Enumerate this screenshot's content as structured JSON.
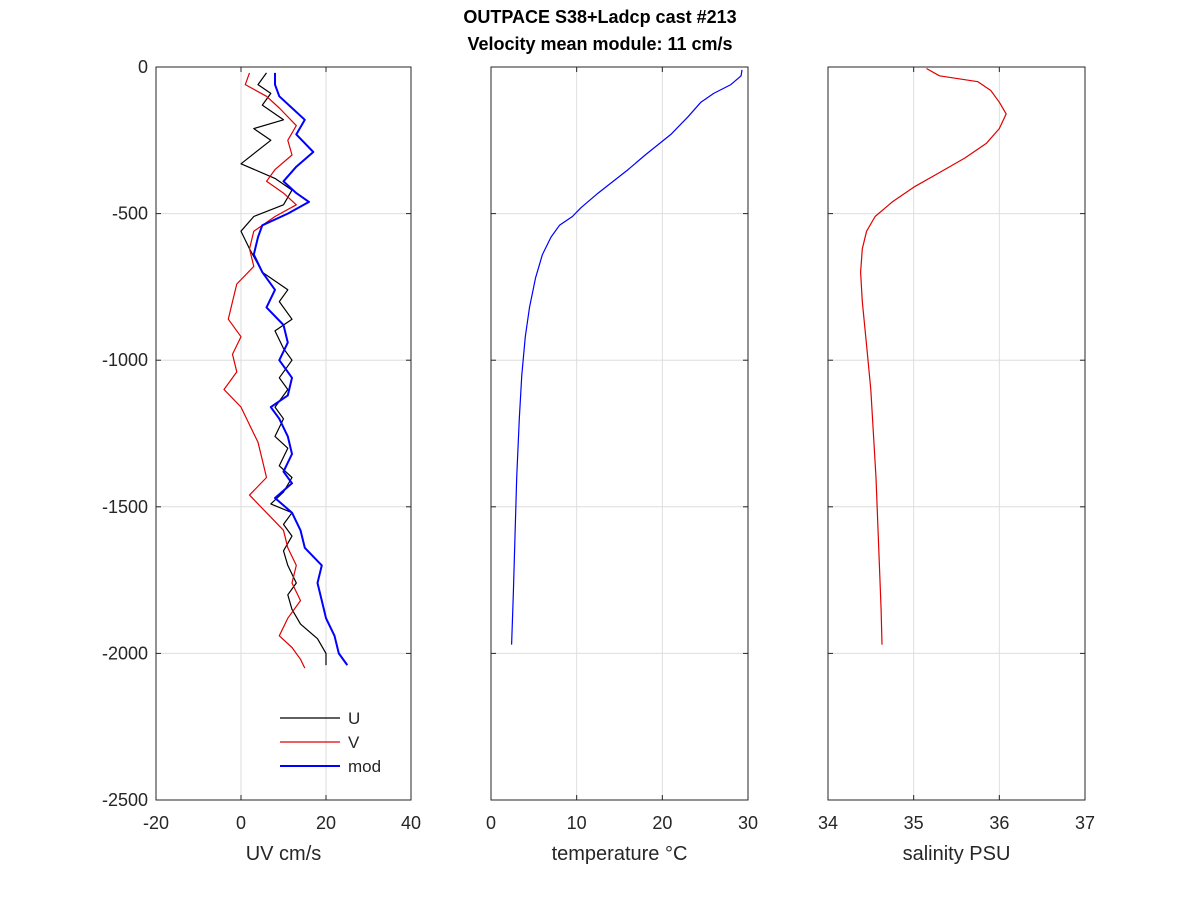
{
  "title_lines": [
    "OUTPACE S38+Ladcp cast #213",
    "Velocity mean module:  11 cm/s"
  ],
  "colors": {
    "U": "#000000",
    "V": "#e00000",
    "mod": "#0000ff",
    "temperature": "#0000ff",
    "salinity": "#e00000",
    "grid": "#dedede",
    "axis": "#262626"
  },
  "chart_data": [
    {
      "type": "line",
      "xlabel": "UV cm/s",
      "ylabel": "",
      "xlim": [
        -20,
        40
      ],
      "ylim": [
        -2500,
        0
      ],
      "xticks": [
        -20,
        0,
        20,
        40
      ],
      "yticks": [
        -2500,
        -2000,
        -1500,
        -1000,
        -500,
        0
      ],
      "grid": true,
      "legend": "lower-center",
      "series": [
        {
          "name": "U",
          "color": "#000000",
          "width": 1.2,
          "points": [
            [
              6,
              -20
            ],
            [
              4,
              -60
            ],
            [
              7,
              -90
            ],
            [
              5,
              -130
            ],
            [
              10,
              -180
            ],
            [
              3,
              -210
            ],
            [
              7,
              -250
            ],
            [
              0,
              -330
            ],
            [
              8,
              -380
            ],
            [
              12,
              -420
            ],
            [
              10,
              -470
            ],
            [
              3,
              -510
            ],
            [
              0,
              -560
            ],
            [
              2,
              -620
            ],
            [
              5,
              -700
            ],
            [
              11,
              -760
            ],
            [
              9,
              -800
            ],
            [
              12,
              -860
            ],
            [
              8,
              -900
            ],
            [
              10,
              -960
            ],
            [
              12,
              -1000
            ],
            [
              9,
              -1060
            ],
            [
              11,
              -1100
            ],
            [
              8,
              -1160
            ],
            [
              10,
              -1200
            ],
            [
              8,
              -1260
            ],
            [
              11,
              -1300
            ],
            [
              9,
              -1360
            ],
            [
              12,
              -1400
            ],
            [
              10,
              -1450
            ],
            [
              7,
              -1490
            ],
            [
              12,
              -1520
            ],
            [
              10,
              -1560
            ],
            [
              12,
              -1600
            ],
            [
              10,
              -1650
            ],
            [
              11,
              -1700
            ],
            [
              13,
              -1760
            ],
            [
              11,
              -1800
            ],
            [
              12,
              -1850
            ],
            [
              14,
              -1900
            ],
            [
              18,
              -1950
            ],
            [
              20,
              -2000
            ],
            [
              20,
              -2040
            ]
          ]
        },
        {
          "name": "V",
          "color": "#e00000",
          "width": 1.2,
          "points": [
            [
              2,
              -20
            ],
            [
              1,
              -60
            ],
            [
              6,
              -100
            ],
            [
              9,
              -140
            ],
            [
              13,
              -200
            ],
            [
              11,
              -250
            ],
            [
              12,
              -300
            ],
            [
              8,
              -350
            ],
            [
              6,
              -390
            ],
            [
              10,
              -430
            ],
            [
              13,
              -470
            ],
            [
              8,
              -510
            ],
            [
              3,
              -560
            ],
            [
              2,
              -620
            ],
            [
              3,
              -680
            ],
            [
              -1,
              -740
            ],
            [
              -2,
              -800
            ],
            [
              -3,
              -860
            ],
            [
              0,
              -920
            ],
            [
              -2,
              -980
            ],
            [
              -1,
              -1040
            ],
            [
              -4,
              -1100
            ],
            [
              0,
              -1160
            ],
            [
              2,
              -1220
            ],
            [
              4,
              -1280
            ],
            [
              5,
              -1340
            ],
            [
              6,
              -1400
            ],
            [
              2,
              -1460
            ],
            [
              6,
              -1520
            ],
            [
              10,
              -1580
            ],
            [
              11,
              -1640
            ],
            [
              13,
              -1700
            ],
            [
              12,
              -1760
            ],
            [
              14,
              -1820
            ],
            [
              11,
              -1880
            ],
            [
              9,
              -1940
            ],
            [
              12,
              -1980
            ],
            [
              14,
              -2020
            ],
            [
              15,
              -2050
            ]
          ]
        },
        {
          "name": "mod",
          "color": "#0000ff",
          "width": 2,
          "points": [
            [
              8,
              -20
            ],
            [
              8,
              -60
            ],
            [
              9,
              -100
            ],
            [
              12,
              -140
            ],
            [
              15,
              -180
            ],
            [
              13,
              -230
            ],
            [
              17,
              -290
            ],
            [
              13,
              -340
            ],
            [
              10,
              -390
            ],
            [
              13,
              -430
            ],
            [
              16,
              -460
            ],
            [
              11,
              -500
            ],
            [
              5,
              -540
            ],
            [
              4,
              -580
            ],
            [
              3,
              -640
            ],
            [
              5,
              -700
            ],
            [
              8,
              -760
            ],
            [
              6,
              -820
            ],
            [
              10,
              -880
            ],
            [
              11,
              -940
            ],
            [
              9,
              -1000
            ],
            [
              12,
              -1060
            ],
            [
              11,
              -1120
            ],
            [
              7,
              -1160
            ],
            [
              9,
              -1200
            ],
            [
              11,
              -1260
            ],
            [
              12,
              -1320
            ],
            [
              10,
              -1380
            ],
            [
              12,
              -1420
            ],
            [
              8,
              -1470
            ],
            [
              12,
              -1520
            ],
            [
              14,
              -1580
            ],
            [
              15,
              -1640
            ],
            [
              19,
              -1700
            ],
            [
              18,
              -1760
            ],
            [
              19,
              -1820
            ],
            [
              20,
              -1880
            ],
            [
              22,
              -1940
            ],
            [
              23,
              -2000
            ],
            [
              25,
              -2040
            ]
          ]
        }
      ]
    },
    {
      "type": "line",
      "xlabel": "temperature °C",
      "ylabel": "",
      "xlim": [
        0,
        30
      ],
      "ylim": [
        -2500,
        0
      ],
      "xticks": [
        0,
        10,
        20,
        30
      ],
      "yticks": [
        -2500,
        -2000,
        -1500,
        -1000,
        -500,
        0
      ],
      "grid": true,
      "series": [
        {
          "color": "#0000ff",
          "width": 1.2,
          "points": [
            [
              29.3,
              -10
            ],
            [
              29.2,
              -30
            ],
            [
              28,
              -60
            ],
            [
              26,
              -90
            ],
            [
              24.5,
              -120
            ],
            [
              23,
              -170
            ],
            [
              21,
              -230
            ],
            [
              18,
              -300
            ],
            [
              16,
              -350
            ],
            [
              12.5,
              -430
            ],
            [
              10.5,
              -480
            ],
            [
              9.5,
              -510
            ],
            [
              8,
              -540
            ],
            [
              7,
              -580
            ],
            [
              6,
              -640
            ],
            [
              5.2,
              -720
            ],
            [
              4.5,
              -820
            ],
            [
              4,
              -920
            ],
            [
              3.6,
              -1050
            ],
            [
              3.3,
              -1200
            ],
            [
              3,
              -1400
            ],
            [
              2.8,
              -1600
            ],
            [
              2.6,
              -1800
            ],
            [
              2.4,
              -1970
            ]
          ]
        }
      ]
    },
    {
      "type": "line",
      "xlabel": "salinity PSU",
      "ylabel": "",
      "xlim": [
        34,
        37
      ],
      "ylim": [
        -2500,
        0
      ],
      "xticks": [
        34,
        35,
        36,
        37
      ],
      "yticks": [
        -2500,
        -2000,
        -1500,
        -1000,
        -500,
        0
      ],
      "grid": true,
      "series": [
        {
          "color": "#e00000",
          "width": 1.2,
          "points": [
            [
              35.15,
              -5
            ],
            [
              35.3,
              -30
            ],
            [
              35.75,
              -50
            ],
            [
              35.9,
              -80
            ],
            [
              36.0,
              -120
            ],
            [
              36.08,
              -160
            ],
            [
              36.0,
              -210
            ],
            [
              35.85,
              -260
            ],
            [
              35.6,
              -310
            ],
            [
              35.3,
              -360
            ],
            [
              35.0,
              -410
            ],
            [
              34.75,
              -460
            ],
            [
              34.55,
              -510
            ],
            [
              34.45,
              -560
            ],
            [
              34.4,
              -620
            ],
            [
              34.38,
              -700
            ],
            [
              34.4,
              -800
            ],
            [
              34.45,
              -950
            ],
            [
              34.5,
              -1100
            ],
            [
              34.53,
              -1250
            ],
            [
              34.56,
              -1400
            ],
            [
              34.58,
              -1550
            ],
            [
              34.6,
              -1700
            ],
            [
              34.62,
              -1850
            ],
            [
              34.63,
              -1970
            ]
          ]
        }
      ]
    }
  ]
}
